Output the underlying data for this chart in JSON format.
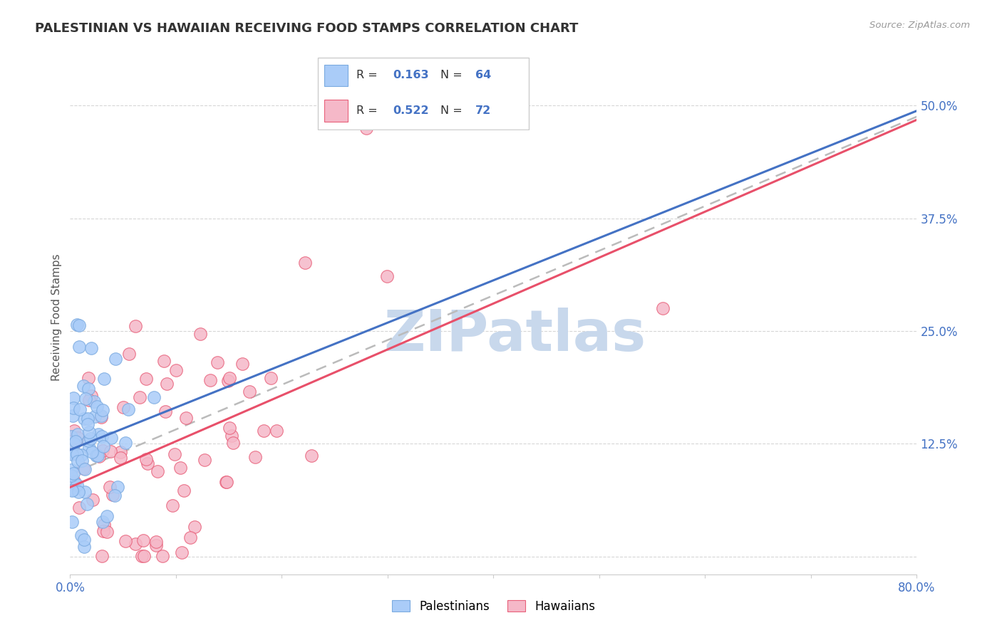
{
  "title": "PALESTINIAN VS HAWAIIAN RECEIVING FOOD STAMPS CORRELATION CHART",
  "source": "Source: ZipAtlas.com",
  "ylabel": "Receiving Food Stamps",
  "xlim": [
    0.0,
    0.8
  ],
  "ylim": [
    -0.02,
    0.55
  ],
  "ytick_positions": [
    0.0,
    0.125,
    0.25,
    0.375,
    0.5
  ],
  "yticklabels_right": [
    "",
    "12.5%",
    "25.0%",
    "37.5%",
    "50.0%"
  ],
  "R_blue": 0.163,
  "N_blue": 64,
  "R_pink": 0.522,
  "N_pink": 72,
  "blue_fill": "#AACCF8",
  "blue_edge": "#7AAAE0",
  "pink_fill": "#F5B8C8",
  "pink_edge": "#E8607A",
  "line_blue": "#4472C4",
  "line_pink": "#E8506A",
  "line_dash": "#BBBBBB",
  "grid_color": "#CCCCCC",
  "watermark_text": "ZIPatlas",
  "watermark_color": "#C8D8EC",
  "legend_label_blue": "Palestinians",
  "legend_label_pink": "Hawaiians",
  "pal_seed": 10,
  "haw_seed": 20
}
